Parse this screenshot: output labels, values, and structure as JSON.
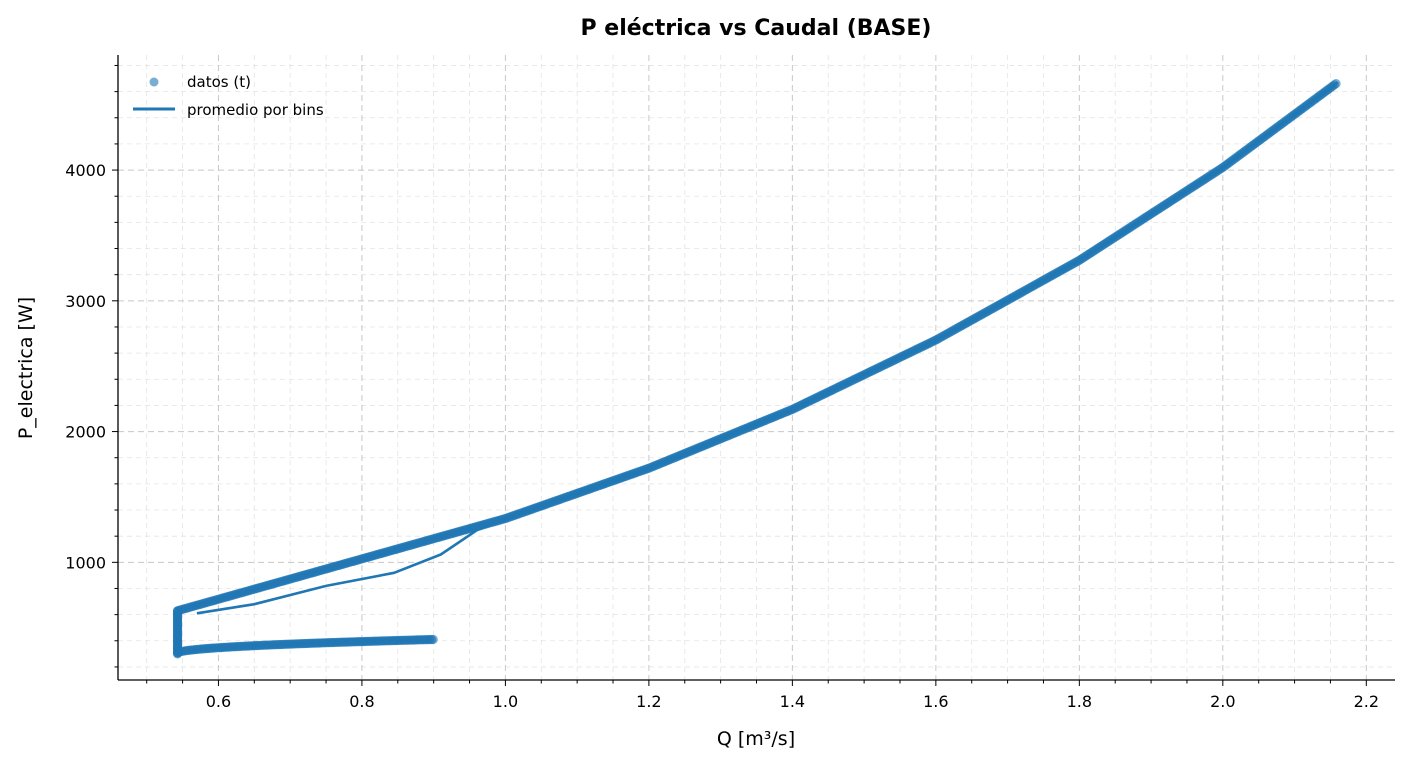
{
  "chart_data": {
    "type": "scatter",
    "title": "P eléctrica vs Caudal (BASE)",
    "xlabel": "Q [m³/s]",
    "ylabel": "P_electrica [W]",
    "xlim": [
      0.46,
      2.24
    ],
    "ylim": [
      100,
      4880
    ],
    "x_ticks": [
      0.6,
      0.8,
      1.0,
      1.2,
      1.4,
      1.6,
      1.8,
      2.0,
      2.2
    ],
    "x_tick_labels": [
      "0.6",
      "0.8",
      "1.0",
      "1.2",
      "1.4",
      "1.6",
      "1.8",
      "2.0",
      "2.2"
    ],
    "y_ticks": [
      1000,
      2000,
      3000,
      4000
    ],
    "y_tick_labels": [
      "1000",
      "2000",
      "3000",
      "4000"
    ],
    "grid": true,
    "legend_position": "top-left",
    "color": "#1f77b4",
    "series": [
      {
        "name": "datos (t)",
        "kind": "scatter",
        "segments": [
          {
            "x_from": 0.543,
            "x_to": 2.16,
            "curve": "upper"
          },
          {
            "x_from": 0.543,
            "x_to": 0.9,
            "curve": "lower"
          },
          {
            "x": 0.543,
            "y_from": 300,
            "y_to": 630,
            "curve": "vertical"
          }
        ]
      },
      {
        "name": "promedio por bins",
        "kind": "line",
        "x": [
          0.57,
          0.65,
          0.75,
          0.845,
          0.91,
          0.96,
          1.0,
          1.2,
          1.4,
          1.6,
          1.8,
          2.0,
          2.16
        ],
        "y": [
          610,
          680,
          820,
          920,
          1060,
          1245,
          1335,
          1720,
          2170,
          2700,
          3310,
          4020,
          4670
        ]
      }
    ]
  }
}
